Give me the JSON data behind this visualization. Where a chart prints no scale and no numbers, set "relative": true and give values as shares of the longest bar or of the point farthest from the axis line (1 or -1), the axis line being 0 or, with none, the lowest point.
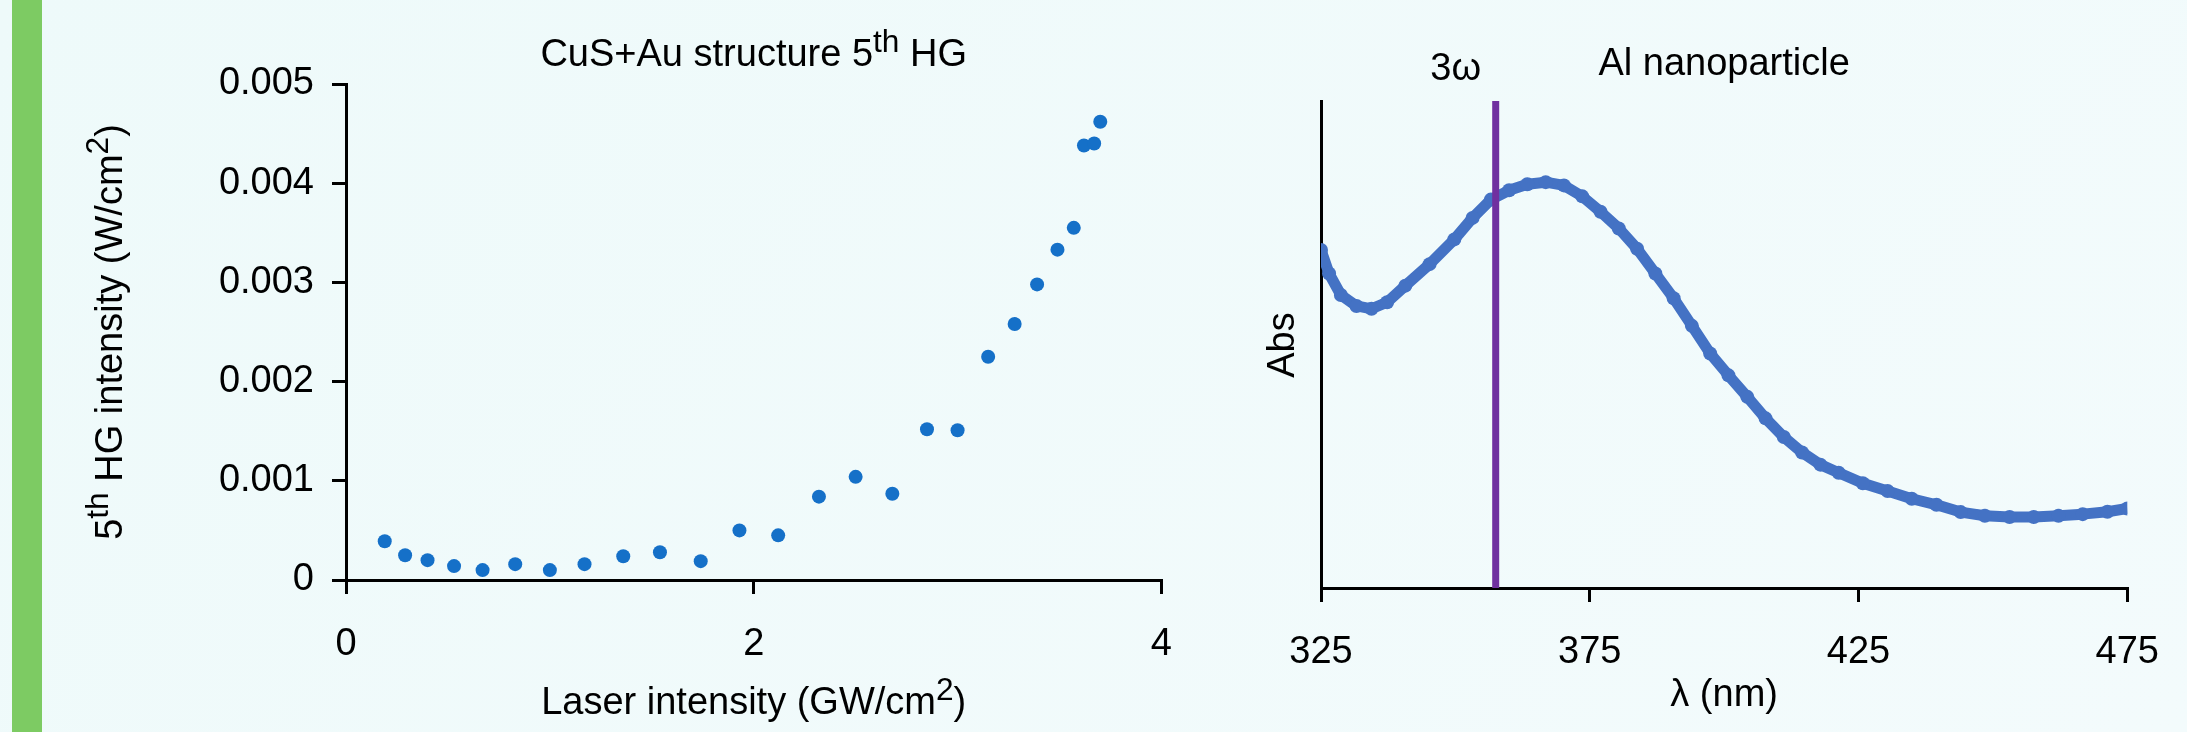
{
  "chart_data": [
    {
      "type": "scatter",
      "title": "CuS+Au structure 5$^{th}$ HG",
      "xlabel": "Laser intensity (GW/cm$^{2}$)",
      "ylabel": "5$^{th}$ HG intensity (W/cm$^{2}$)",
      "marker": "circle",
      "color": "#1570c8",
      "x": [
        0.19,
        0.29,
        0.4,
        0.53,
        0.67,
        0.83,
        1.0,
        1.17,
        1.36,
        1.54,
        1.74,
        1.93,
        2.12,
        2.32,
        2.5,
        2.68,
        2.85,
        3.0,
        3.15,
        3.28,
        3.39,
        3.49,
        3.57,
        3.62,
        3.67,
        3.7
      ],
      "values": [
        0.00039,
        0.00025,
        0.0002,
        0.00014,
        0.0001,
        0.00016,
        0.0001,
        0.00016,
        0.00024,
        0.00028,
        0.00019,
        0.0005,
        0.00045,
        0.00084,
        0.00104,
        0.00087,
        0.00152,
        0.00151,
        0.00225,
        0.00258,
        0.00298,
        0.00333,
        0.00355,
        0.00438,
        0.0044,
        0.00462
      ],
      "xlim": [
        0,
        4
      ],
      "xticks": [
        0,
        2,
        4
      ],
      "ylim": [
        0,
        0.005
      ],
      "yticks": [
        0,
        0.001,
        0.002,
        0.003,
        0.004,
        0.005
      ],
      "grid": false
    },
    {
      "type": "line",
      "title": "Al nanoparticle",
      "xlabel": "λ (nm)",
      "ylabel": "Abs",
      "relative": true,
      "marker": "circle",
      "line_style": "solid",
      "series": [
        {
          "color": "#4472c4",
          "x": [
            325,
            326.5,
            328.7,
            331.6,
            334.4,
            337.3,
            340.7,
            345.2,
            349.8,
            353.2,
            356.6,
            360,
            363.4,
            366.8,
            370.2,
            373.6,
            377,
            380.4,
            383.8,
            387.2,
            390.6,
            394,
            397.4,
            400.8,
            404.3,
            407.7,
            411.1,
            414.5,
            417.9,
            421.3,
            425.8,
            430.4,
            434.9,
            439.5,
            444,
            448.5,
            453.1,
            457.6,
            462.2,
            466.7,
            471.3,
            475
          ],
          "values": [
            0.833,
            0.775,
            0.722,
            0.695,
            0.688,
            0.704,
            0.745,
            0.798,
            0.859,
            0.912,
            0.957,
            0.98,
            0.995,
            1,
            0.992,
            0.965,
            0.927,
            0.886,
            0.836,
            0.775,
            0.714,
            0.646,
            0.578,
            0.524,
            0.471,
            0.418,
            0.372,
            0.334,
            0.304,
            0.284,
            0.258,
            0.239,
            0.22,
            0.205,
            0.187,
            0.178,
            0.175,
            0.175,
            0.178,
            0.182,
            0.188,
            0.196
          ]
        }
      ],
      "xlim": [
        325,
        475
      ],
      "xticks": [
        325,
        375,
        425,
        475
      ],
      "grid": false,
      "ref_lines": [
        {
          "axis": "x",
          "value": 357.5,
          "label": "3ω",
          "color": "#7030a0"
        }
      ]
    }
  ]
}
